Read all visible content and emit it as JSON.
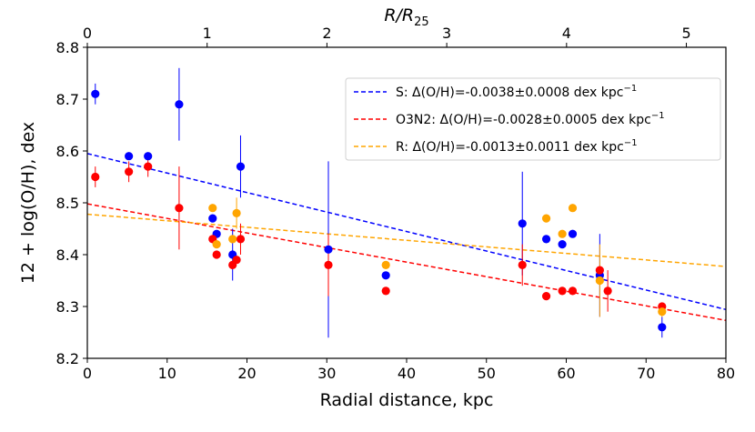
{
  "chart_data": {
    "type": "scatter",
    "xlabel": "Radial distance, kpc",
    "ylabel": "12 + log(O/H), dex",
    "top_xlabel": "R/R",
    "top_xlabel_sub": "25",
    "xlim": [
      0,
      80
    ],
    "ylim": [
      8.2,
      8.8
    ],
    "top_xlim": [
      0,
      5.33
    ],
    "x_ticks": [
      0,
      10,
      20,
      30,
      40,
      50,
      60,
      70,
      80
    ],
    "x_tick_labels": [
      "0",
      "10",
      "20",
      "30",
      "40",
      "50",
      "60",
      "70",
      "80"
    ],
    "y_ticks": [
      8.2,
      8.3,
      8.4,
      8.5,
      8.6,
      8.7,
      8.8
    ],
    "y_tick_labels": [
      "8.2",
      "8.3",
      "8.4",
      "8.5",
      "8.6",
      "8.7",
      "8.8"
    ],
    "top_ticks": [
      0,
      1,
      2,
      3,
      4,
      5
    ],
    "top_tick_labels": [
      "0",
      "1",
      "2",
      "3",
      "4",
      "5"
    ],
    "legend_position": "top-right",
    "series": [
      {
        "name": "S",
        "color": "#0000ff",
        "legend": "S: Δ(O/H)=-0.0038±0.0008 dex kpc",
        "legend_sup": "−1",
        "fit": {
          "intercept": 8.595,
          "slope": -0.00376
        },
        "points": [
          {
            "x": 1.0,
            "y": 8.71,
            "err": 0.02
          },
          {
            "x": 5.2,
            "y": 8.59,
            "err": 0
          },
          {
            "x": 7.6,
            "y": 8.59,
            "err": 0
          },
          {
            "x": 11.5,
            "y": 8.69,
            "err": 0.07
          },
          {
            "x": 15.7,
            "y": 8.47,
            "err": 0
          },
          {
            "x": 16.2,
            "y": 8.44,
            "err": 0
          },
          {
            "x": 18.2,
            "y": 8.4,
            "err": 0.05
          },
          {
            "x": 19.2,
            "y": 8.57,
            "err": 0.06
          },
          {
            "x": 30.2,
            "y": 8.41,
            "err": 0.17
          },
          {
            "x": 37.4,
            "y": 8.36,
            "err": 0
          },
          {
            "x": 54.5,
            "y": 8.46,
            "err": 0.1
          },
          {
            "x": 57.5,
            "y": 8.43,
            "err": 0
          },
          {
            "x": 59.5,
            "y": 8.42,
            "err": 0
          },
          {
            "x": 60.8,
            "y": 8.44,
            "err": 0
          },
          {
            "x": 64.2,
            "y": 8.36,
            "err": 0.08
          },
          {
            "x": 72.0,
            "y": 8.26,
            "err": 0.02
          }
        ]
      },
      {
        "name": "O3N2",
        "color": "#ff0000",
        "legend": "O3N2: Δ(O/H)=-0.0028±0.0005 dex kpc",
        "legend_sup": "−1",
        "fit": {
          "intercept": 8.498,
          "slope": -0.00281
        },
        "points": [
          {
            "x": 1.0,
            "y": 8.55,
            "err": 0.02
          },
          {
            "x": 5.2,
            "y": 8.56,
            "err": 0.02
          },
          {
            "x": 7.6,
            "y": 8.57,
            "err": 0.02
          },
          {
            "x": 11.5,
            "y": 8.49,
            "err": 0.08
          },
          {
            "x": 15.7,
            "y": 8.43,
            "err": 0
          },
          {
            "x": 16.2,
            "y": 8.4,
            "err": 0
          },
          {
            "x": 18.2,
            "y": 8.38,
            "err": 0
          },
          {
            "x": 18.7,
            "y": 8.39,
            "err": 0
          },
          {
            "x": 19.2,
            "y": 8.43,
            "err": 0.03
          },
          {
            "x": 30.2,
            "y": 8.38,
            "err": 0.06
          },
          {
            "x": 37.4,
            "y": 8.33,
            "err": 0
          },
          {
            "x": 54.5,
            "y": 8.38,
            "err": 0.04
          },
          {
            "x": 57.5,
            "y": 8.32,
            "err": 0
          },
          {
            "x": 59.5,
            "y": 8.33,
            "err": 0
          },
          {
            "x": 60.8,
            "y": 8.33,
            "err": 0
          },
          {
            "x": 64.2,
            "y": 8.37,
            "err": 0
          },
          {
            "x": 65.2,
            "y": 8.33,
            "err": 0.04
          },
          {
            "x": 72.0,
            "y": 8.3,
            "err": 0
          }
        ]
      },
      {
        "name": "R",
        "color": "#ffa500",
        "legend": "R: Δ(O/H)=-0.0013±0.0011 dex kpc",
        "legend_sup": "−1",
        "fit": {
          "intercept": 8.478,
          "slope": -0.00126
        },
        "points": [
          {
            "x": 15.7,
            "y": 8.49,
            "err": 0
          },
          {
            "x": 16.2,
            "y": 8.42,
            "err": 0
          },
          {
            "x": 18.2,
            "y": 8.43,
            "err": 0
          },
          {
            "x": 18.7,
            "y": 8.48,
            "err": 0.03
          },
          {
            "x": 37.4,
            "y": 8.38,
            "err": 0
          },
          {
            "x": 57.5,
            "y": 8.47,
            "err": 0
          },
          {
            "x": 59.5,
            "y": 8.44,
            "err": 0
          },
          {
            "x": 60.8,
            "y": 8.49,
            "err": 0
          },
          {
            "x": 64.2,
            "y": 8.35,
            "err": 0.07
          },
          {
            "x": 72.0,
            "y": 8.29,
            "err": 0.01
          }
        ]
      }
    ]
  }
}
